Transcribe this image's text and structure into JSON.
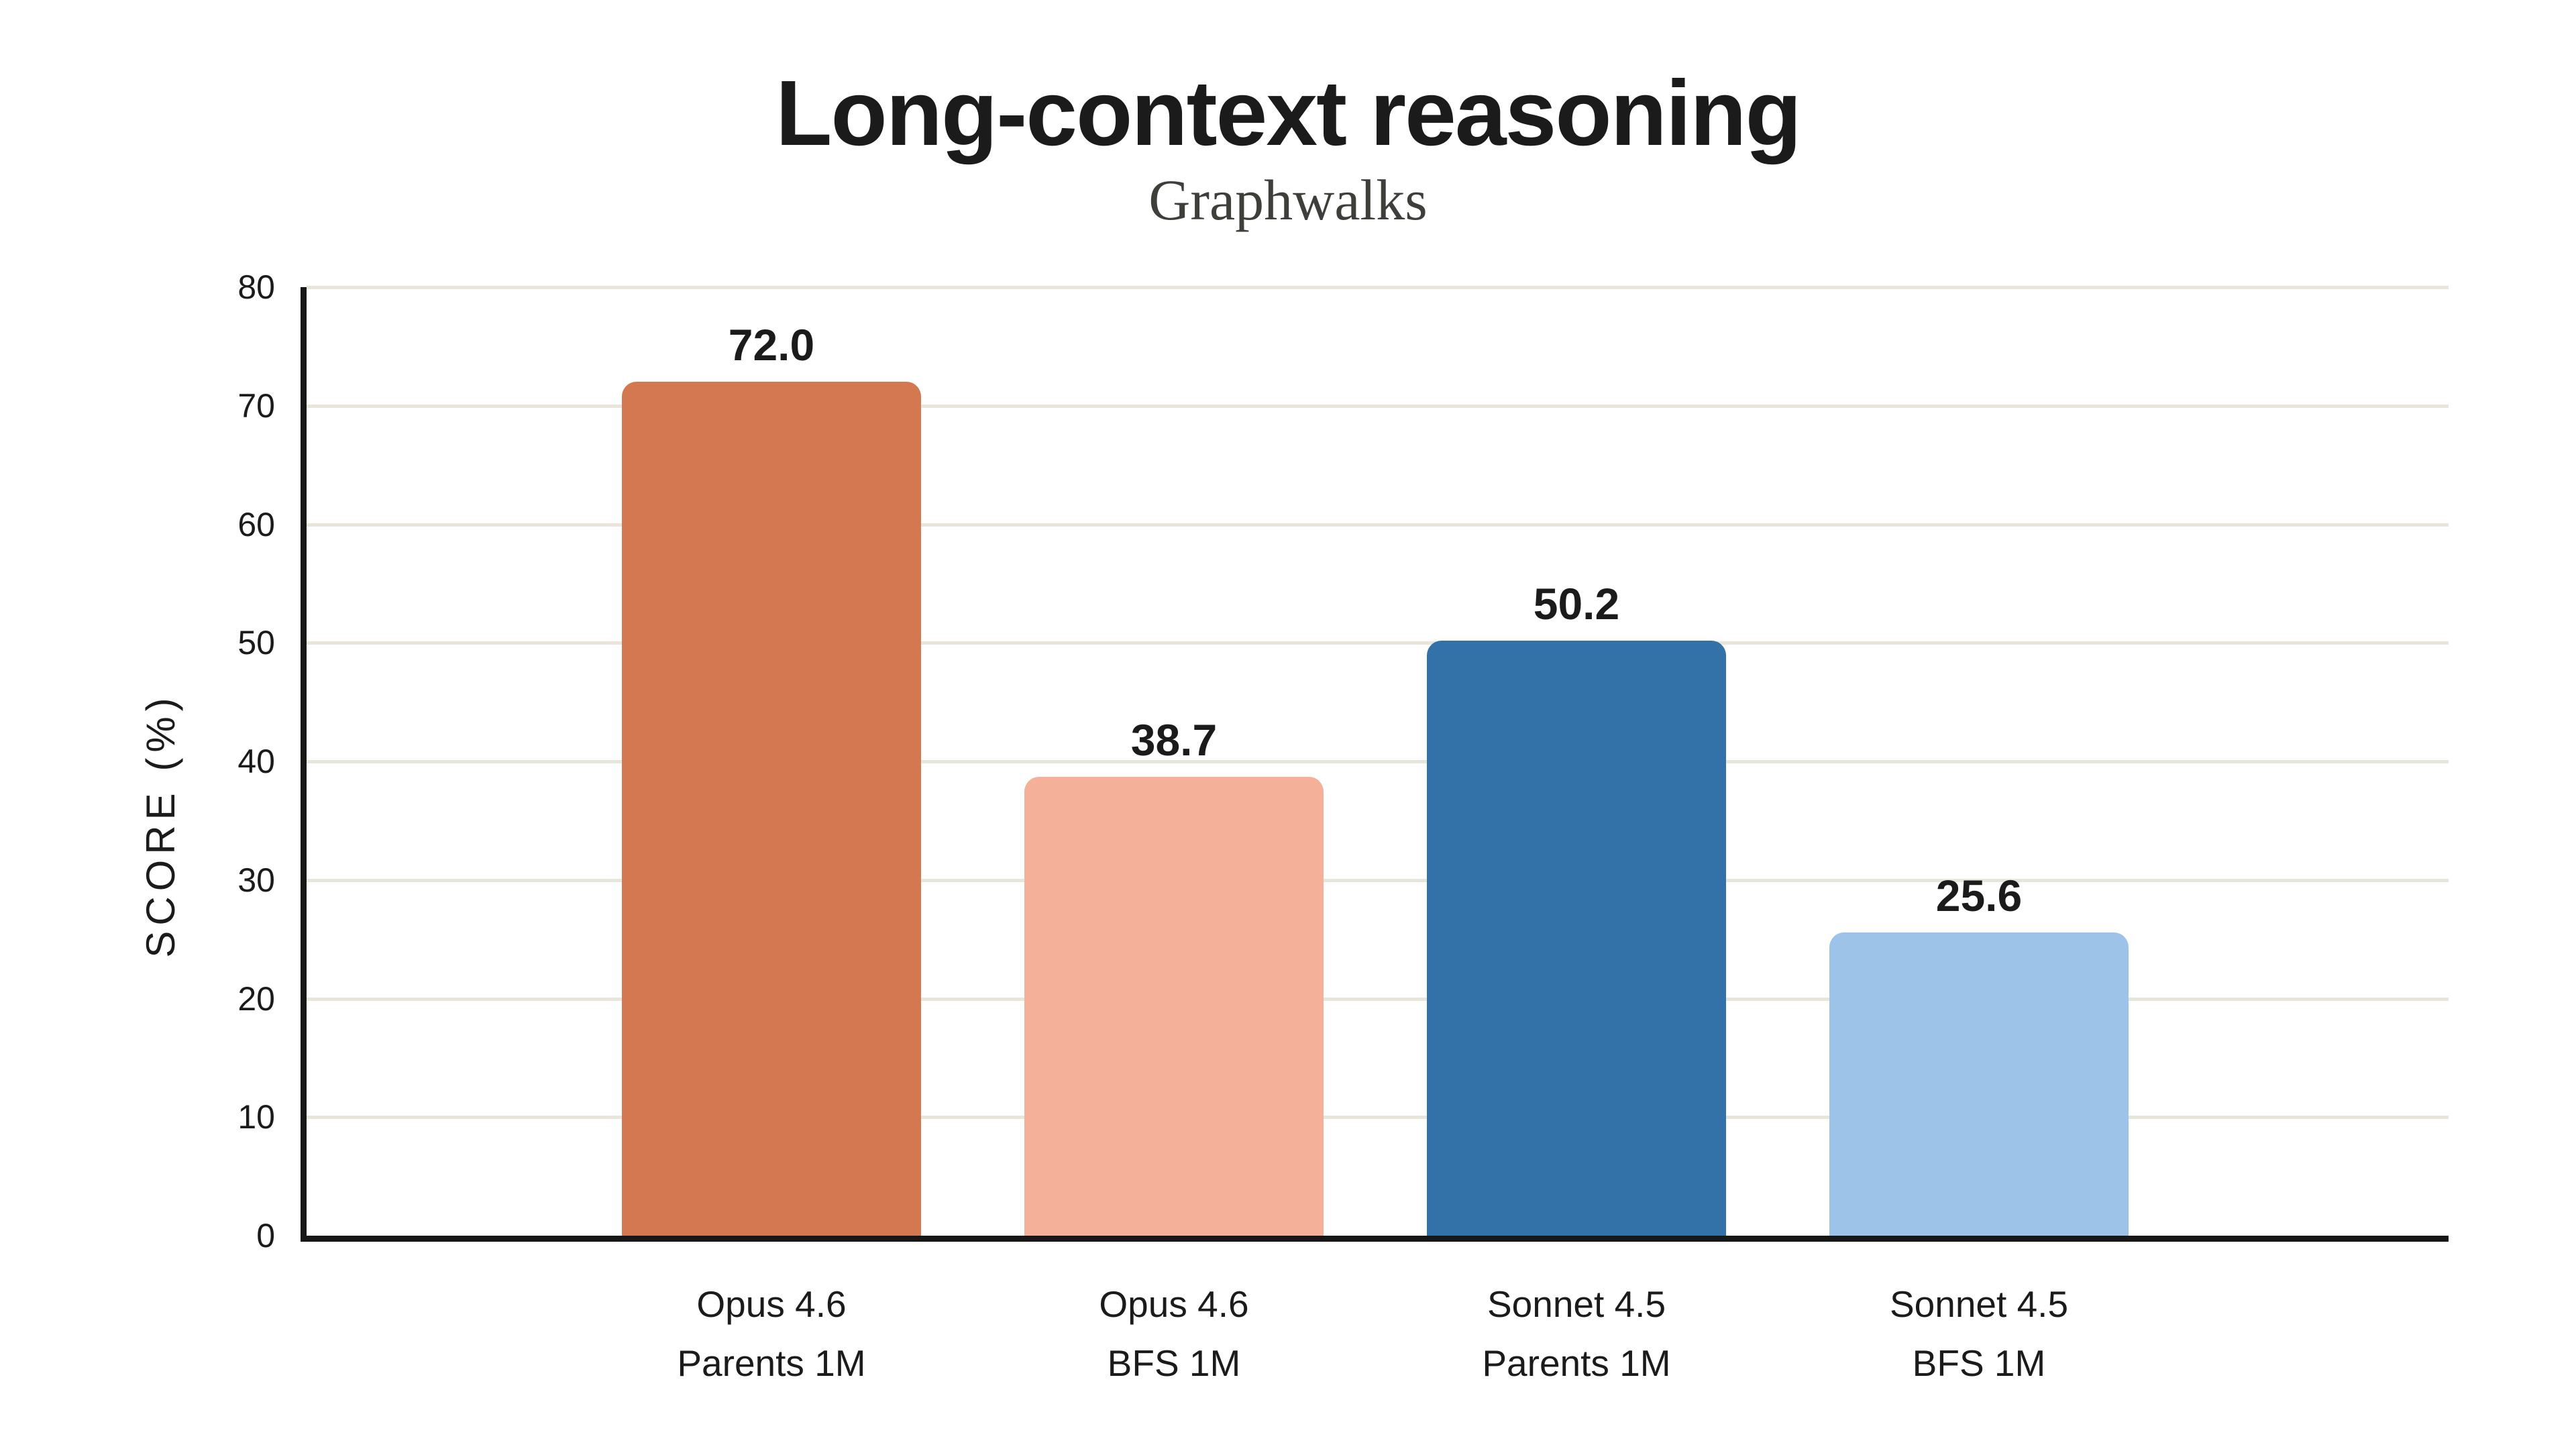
{
  "title": "Long-context reasoning",
  "subtitle": "Graphwalks",
  "chart_data": {
    "type": "bar",
    "title": "Long-context reasoning",
    "subtitle": "Graphwalks",
    "xlabel": "",
    "ylabel": "SCORE (%)",
    "ylim": [
      0,
      80
    ],
    "yticks": [
      0,
      10,
      20,
      30,
      40,
      50,
      60,
      70,
      80
    ],
    "grid": "horizontal-only",
    "legend_position": "none",
    "categories": [
      [
        "Opus 4.6",
        "Parents 1M"
      ],
      [
        "Opus 4.6",
        "BFS 1M"
      ],
      [
        "Sonnet 4.5",
        "Parents 1M"
      ],
      [
        "Sonnet 4.5",
        "BFS 1M"
      ]
    ],
    "values": [
      72.0,
      38.7,
      50.2,
      25.6
    ],
    "value_labels": [
      "72.0",
      "38.7",
      "50.2",
      "25.6"
    ],
    "bar_colors": [
      "#D47851",
      "#F4B098",
      "#3371A9",
      "#9EC3E8"
    ],
    "colors": {
      "background": "#FFFFFF",
      "gridline": "#E8E6DA",
      "axis": "#171717",
      "title_text": "#1B1B1B",
      "subtitle_text": "#3E3E3A",
      "label_text": "#1B1B1B"
    }
  }
}
